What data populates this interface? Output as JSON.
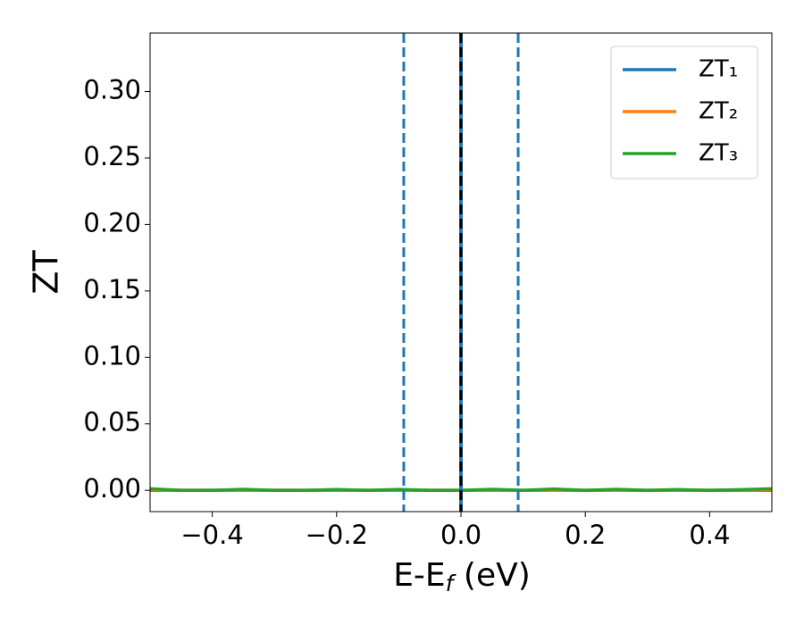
{
  "chart_data": {
    "type": "line",
    "xlabel": [
      "E-E",
      "f",
      " (eV)"
    ],
    "ylabel": "ZT",
    "x": [
      -0.5,
      -0.45,
      -0.4,
      -0.35,
      -0.3,
      -0.25,
      -0.2,
      -0.15,
      -0.1,
      -0.05,
      0.0,
      0.05,
      0.1,
      0.15,
      0.2,
      0.25,
      0.3,
      0.35,
      0.4,
      0.45,
      0.5
    ],
    "series": [
      {
        "name": "ZT₁",
        "color": "#1f77b4",
        "values": [
          0,
          0,
          0,
          0,
          0,
          0,
          0,
          0,
          0,
          0,
          0,
          0,
          0,
          0,
          0,
          0,
          0,
          0,
          0,
          0,
          0
        ]
      },
      {
        "name": "ZT₂",
        "color": "#ff7f0e",
        "values": [
          0.0005,
          0,
          0,
          0,
          0,
          0,
          0,
          0,
          0,
          0,
          0,
          0,
          0,
          0,
          0,
          0,
          0,
          0,
          0,
          0.0002,
          0.0005
        ]
      },
      {
        "name": "ZT₃",
        "color": "#2ca02c",
        "values": [
          0.0012,
          0,
          0,
          0.0008,
          0,
          0,
          0.0006,
          0,
          0.0007,
          0,
          0,
          0.0008,
          0,
          0.001,
          0,
          0.0008,
          0,
          0.0006,
          0,
          0.0005,
          0.0012
        ]
      }
    ],
    "vlines": [
      {
        "x": -0.092,
        "color": "#1f77b4",
        "style": "dashed"
      },
      {
        "x": 0.092,
        "color": "#1f77b4",
        "style": "dashed"
      },
      {
        "x": 0,
        "color": "#1f77b4",
        "style": "solid"
      },
      {
        "x": 0,
        "color": "#000000",
        "style": "dashed"
      }
    ],
    "xlim": [
      -0.5,
      0.5
    ],
    "xticks": [
      {
        "value": -0.4,
        "label": "−0.4"
      },
      {
        "value": -0.2,
        "label": "−0.2"
      },
      {
        "value": 0,
        "label": "0.0"
      },
      0.2,
      0.4
    ],
    "ylim": [
      -0.016,
      0.344
    ],
    "yticks": [
      {
        "value": 0,
        "label": "0.00"
      },
      {
        "value": 0.05,
        "label": "0.05"
      },
      {
        "value": 0.1,
        "label": "0.10"
      },
      {
        "value": 0.15,
        "label": "0.15"
      },
      {
        "value": 0.2,
        "label": "0.20"
      },
      {
        "value": 0.25,
        "label": "0.25"
      },
      {
        "value": 0.3,
        "label": "0.30"
      }
    ],
    "legend": "upper right"
  }
}
